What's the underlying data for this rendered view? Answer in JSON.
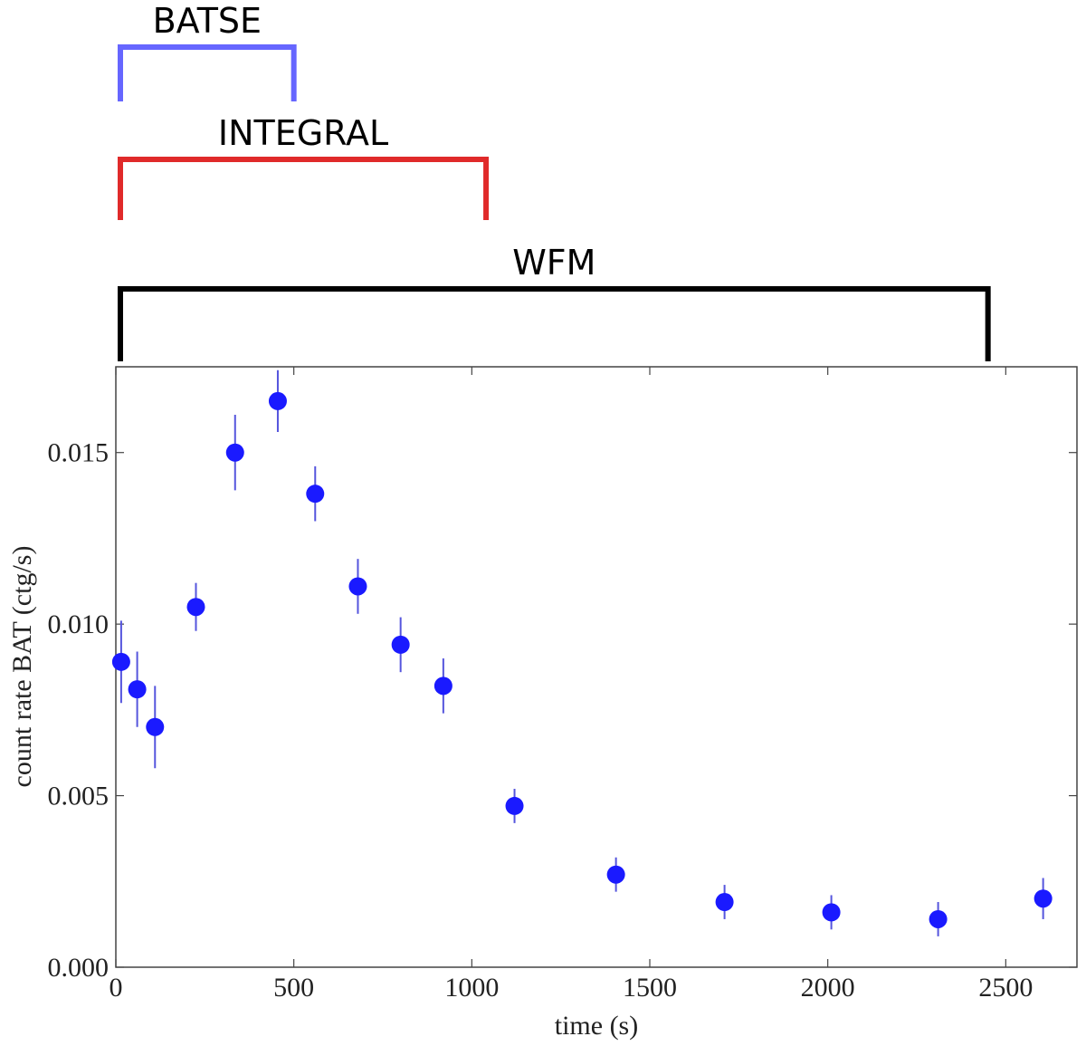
{
  "chart_data": {
    "type": "scatter",
    "xlabel": "time (s)",
    "ylabel": "count rate BAT (ctg/s)",
    "xlim": [
      0,
      2700
    ],
    "ylim": [
      0,
      0.0175
    ],
    "xticks": [
      0,
      500,
      1000,
      1500,
      2000,
      2500
    ],
    "xtick_labels": [
      "0",
      "500",
      "1000",
      "1500",
      "2000",
      "2500"
    ],
    "yticks": [
      0,
      0.005,
      0.01,
      0.015
    ],
    "ytick_labels": [
      "0.000",
      "0.005",
      "0.010",
      "0.015"
    ],
    "marker_color": "#1a1aff",
    "errorbar_color": "#5555dd",
    "points": [
      {
        "x": 15,
        "y": 0.0089,
        "err": 0.0012
      },
      {
        "x": 60,
        "y": 0.0081,
        "err": 0.0011
      },
      {
        "x": 110,
        "y": 0.007,
        "err": 0.0012
      },
      {
        "x": 225,
        "y": 0.0105,
        "err": 0.0007
      },
      {
        "x": 335,
        "y": 0.015,
        "err": 0.0011
      },
      {
        "x": 455,
        "y": 0.0165,
        "err": 0.0009
      },
      {
        "x": 560,
        "y": 0.0138,
        "err": 0.0008
      },
      {
        "x": 680,
        "y": 0.0111,
        "err": 0.0008
      },
      {
        "x": 800,
        "y": 0.0094,
        "err": 0.0008
      },
      {
        "x": 920,
        "y": 0.0082,
        "err": 0.0008
      },
      {
        "x": 1120,
        "y": 0.0047,
        "err": 0.0005
      },
      {
        "x": 1405,
        "y": 0.0027,
        "err": 0.0005
      },
      {
        "x": 1710,
        "y": 0.0019,
        "err": 0.0005
      },
      {
        "x": 2010,
        "y": 0.0016,
        "err": 0.0005
      },
      {
        "x": 2310,
        "y": 0.0014,
        "err": 0.0005
      },
      {
        "x": 2605,
        "y": 0.002,
        "err": 0.0006
      }
    ],
    "brackets": [
      {
        "label": "BATSE",
        "start": 0,
        "end": 500,
        "color": "#6666ff"
      },
      {
        "label": "INTEGRAL",
        "start": 0,
        "end": 1040,
        "color": "#e02a2a"
      },
      {
        "label": "WFM",
        "start": 0,
        "end": 2450,
        "color": "#000000"
      }
    ]
  }
}
